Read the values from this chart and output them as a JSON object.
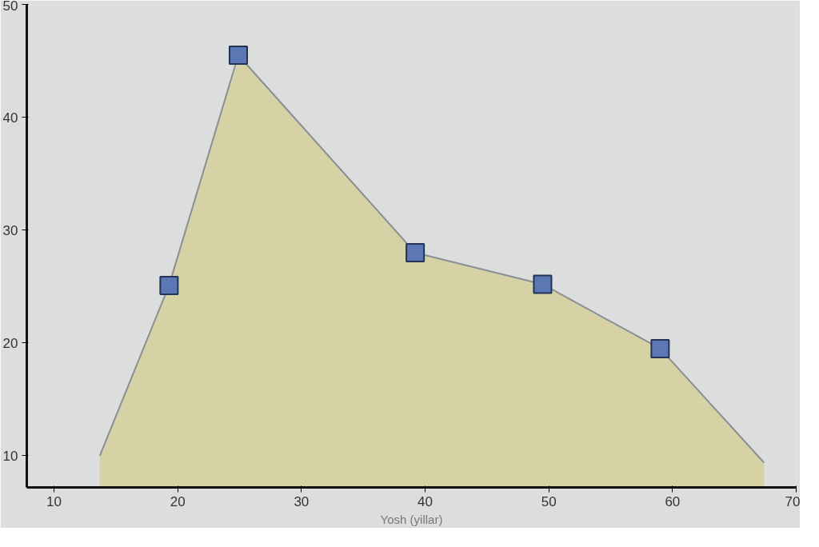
{
  "chart_data": {
    "type": "area",
    "xlabel": "Yosh (yillar)",
    "xlim": [
      7.8,
      70
    ],
    "ylim": [
      7.2,
      50
    ],
    "xticks": [
      10,
      20,
      30,
      40,
      50,
      60,
      70
    ],
    "yticks": [
      10,
      20,
      30,
      40,
      50
    ],
    "grid": false,
    "series": [
      {
        "color": "#d6d2a6",
        "marker": "none",
        "x": [
          13.7,
          19.3,
          24.9,
          39.2,
          49.5,
          59,
          67.4
        ],
        "values": [
          10,
          25.1,
          45.5,
          28,
          25.2,
          19.5,
          9.4
        ]
      },
      {
        "type": "scatter",
        "color": "#5b78b5",
        "marker": "square",
        "x": [
          19.3,
          24.9,
          39.2,
          49.5,
          59
        ],
        "values": [
          25.1,
          45.5,
          28,
          25.2,
          19.5
        ]
      }
    ]
  }
}
